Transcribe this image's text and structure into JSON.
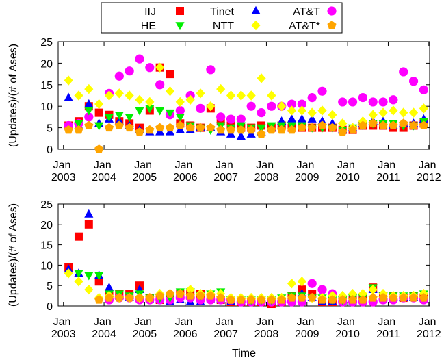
{
  "chart_data": [
    {
      "type": "scatter",
      "ylabel": "(Updates)/(# of Ases)",
      "legend": "top",
      "xlim": [
        2002.87,
        2012.02
      ],
      "ylim": [
        0,
        25
      ],
      "xticks": [
        {
          "value": 2003,
          "label": "Jan 2003"
        },
        {
          "value": 2004,
          "label": "Jan 2004"
        },
        {
          "value": 2005,
          "label": "Jan 2005"
        },
        {
          "value": 2006,
          "label": "Jan 2006"
        },
        {
          "value": 2007,
          "label": "Jan 2007"
        },
        {
          "value": 2008,
          "label": "Jan 2008"
        },
        {
          "value": 2009,
          "label": "Jan 2009"
        },
        {
          "value": 2010,
          "label": "Jan 2010"
        },
        {
          "value": 2011,
          "label": "Jan 2011"
        },
        {
          "value": 2012,
          "label": "Jan 2012"
        }
      ],
      "yticks": [
        0,
        5,
        10,
        15,
        20,
        25
      ],
      "x": [
        2003.125,
        2003.375,
        2003.625,
        2003.875,
        2004.125,
        2004.375,
        2004.625,
        2004.875,
        2005.125,
        2005.375,
        2005.625,
        2005.875,
        2006.125,
        2006.375,
        2006.625,
        2006.875,
        2007.125,
        2007.375,
        2007.625,
        2007.875,
        2008.125,
        2008.375,
        2008.625,
        2008.875,
        2009.125,
        2009.375,
        2009.625,
        2009.875,
        2010.125,
        2010.375,
        2010.625,
        2010.875,
        2011.125,
        2011.375,
        2011.625,
        2011.875
      ],
      "series": [
        {
          "name": "IIJ",
          "color": "#ff0000",
          "marker": "square",
          "values": [
            5.5,
            6.5,
            10,
            8.5,
            8,
            6.5,
            6,
            5,
            9,
            19,
            17.5,
            6,
            5.5,
            5,
            9.5,
            6.5,
            5.5,
            5,
            5,
            5.5,
            5,
            5.5,
            5,
            5,
            5,
            5,
            5,
            4.5,
            4.5,
            5.5,
            5.5,
            5.5,
            5,
            5,
            5.5,
            6
          ]
        },
        {
          "name": "Tinet",
          "color": "#0000ff",
          "marker": "triangle-up",
          "values": [
            12,
            5.5,
            10.5,
            6,
            7,
            6.5,
            5.5,
            4.5,
            4,
            4,
            4,
            4.5,
            4.5,
            5,
            5,
            4,
            3.5,
            3,
            3.5,
            4,
            5,
            6.5,
            7,
            7,
            7,
            6.5,
            6,
            4.5,
            5,
            6,
            6.5,
            6.5,
            5.5,
            6,
            6,
            7
          ]
        },
        {
          "name": "AT&T",
          "color": "#ff00ff",
          "marker": "circle",
          "values": [
            5.5,
            6,
            7.5,
            null,
            13,
            17,
            18.2,
            21,
            19,
            15,
            8,
            9,
            12.5,
            9.5,
            18.5,
            7.5,
            7,
            7,
            10,
            8.5,
            10,
            10,
            10.5,
            10.5,
            12,
            13.5,
            null,
            11,
            11,
            12,
            11,
            11,
            11.5,
            18,
            15.8,
            13.8
          ]
        },
        {
          "name": "HE",
          "color": "#00ee00",
          "marker": "triangle-down",
          "values": [
            null,
            6,
            9,
            5.5,
            7.5,
            8,
            7.5,
            9,
            9.5,
            9,
            8.5,
            7.5,
            5.5,
            5,
            4.5,
            5.5,
            5,
            5.5,
            5,
            5,
            5.5,
            5.5,
            5.5,
            5.5,
            5,
            5,
            5,
            4.5,
            5,
            5.5,
            6,
            6,
            6,
            5.5,
            5.5,
            6.5
          ]
        },
        {
          "name": "NTT",
          "color": "#ffff00",
          "marker": "diamond",
          "values": [
            16,
            12.5,
            14,
            10.5,
            12.5,
            13,
            12.5,
            11.5,
            11,
            19,
            13.5,
            11,
            11.5,
            13,
            10,
            14,
            12.5,
            12.5,
            12.5,
            16.5,
            12.5,
            10,
            9,
            9,
            8.5,
            9,
            8,
            6,
            5,
            6.5,
            8,
            8.5,
            9,
            8.5,
            8.5,
            9.5
          ]
        },
        {
          "name": "AT&T*",
          "color": "#ffa500",
          "marker": "pentagon",
          "values": [
            4.5,
            4.5,
            5.5,
            0,
            5,
            5.5,
            5,
            4,
            4.5,
            5,
            5,
            5.5,
            5,
            5,
            5,
            4.5,
            4.5,
            4.5,
            4.5,
            3.5,
            4.5,
            4.5,
            4.5,
            5,
            5,
            5.5,
            5,
            4,
            4.5,
            5.5,
            6,
            5.5,
            5.5,
            6,
            5.5,
            5.5
          ]
        }
      ]
    },
    {
      "type": "scatter",
      "ylabel": "(Updates)/(# of Ases)",
      "xlabel": "Time",
      "xlim": [
        2002.87,
        2012.02
      ],
      "ylim": [
        0,
        25
      ],
      "xticks": [
        {
          "value": 2003,
          "label": "Jan 2003"
        },
        {
          "value": 2004,
          "label": "Jan 2004"
        },
        {
          "value": 2005,
          "label": "Jan 2005"
        },
        {
          "value": 2006,
          "label": "Jan 2006"
        },
        {
          "value": 2007,
          "label": "Jan 2007"
        },
        {
          "value": 2008,
          "label": "Jan 2008"
        },
        {
          "value": 2009,
          "label": "Jan 2009"
        },
        {
          "value": 2010,
          "label": "Jan 2010"
        },
        {
          "value": 2011,
          "label": "Jan 2011"
        },
        {
          "value": 2012,
          "label": "Jan 2012"
        }
      ],
      "yticks": [
        0,
        5,
        10,
        15,
        20,
        25
      ],
      "x": [
        2003.125,
        2003.375,
        2003.625,
        2003.875,
        2004.125,
        2004.375,
        2004.625,
        2004.875,
        2005.125,
        2005.375,
        2005.625,
        2005.875,
        2006.125,
        2006.375,
        2006.625,
        2006.875,
        2007.125,
        2007.375,
        2007.625,
        2007.875,
        2008.125,
        2008.375,
        2008.625,
        2008.875,
        2009.125,
        2009.375,
        2009.625,
        2009.875,
        2010.125,
        2010.375,
        2010.625,
        2010.875,
        2011.125,
        2011.375,
        2011.625,
        2011.875
      ],
      "series": [
        {
          "color": "#ff0000",
          "marker": "square",
          "values": [
            9.5,
            17,
            20,
            6,
            3,
            3,
            3,
            5,
            2,
            1.5,
            2,
            3,
            3,
            3,
            2,
            1.5,
            1,
            1,
            1,
            1,
            0.5,
            1,
            2.5,
            4,
            3,
            1,
            1,
            1.5,
            1.5,
            2,
            4.5,
            2.5,
            2.5,
            2,
            2.5,
            2
          ]
        },
        {
          "color": "#0000ff",
          "marker": "triangle-up",
          "values": [
            9,
            8,
            22.5,
            7.5,
            4.5,
            2.5,
            2,
            4,
            1.5,
            1.5,
            1,
            1.5,
            1,
            1,
            1.5,
            1.5,
            1,
            1,
            1,
            1,
            1,
            1,
            2,
            3,
            2,
            1,
            1,
            1,
            1,
            1.5,
            4,
            2.5,
            2,
            2,
            2,
            2
          ]
        },
        {
          "color": "#ff00ff",
          "marker": "circle",
          "values": [
            null,
            null,
            null,
            null,
            1.5,
            2,
            2,
            1.5,
            1.5,
            1.5,
            1.5,
            2,
            2,
            1.5,
            1.5,
            1.5,
            1.5,
            1,
            1,
            1,
            1,
            1,
            1,
            1,
            5.5,
            4,
            3,
            1,
            1,
            1,
            1,
            1.5,
            1.5,
            2,
            2,
            1.5
          ]
        },
        {
          "color": "#00ee00",
          "marker": "triangle-down",
          "values": [
            null,
            8,
            7.5,
            7.5,
            3,
            3,
            2.5,
            3,
            2,
            2,
            2,
            3.5,
            3.5,
            2.5,
            3,
            3.5,
            1.5,
            1.5,
            1.5,
            1.5,
            1.5,
            2,
            2.5,
            2.5,
            2,
            2,
            1.5,
            1.5,
            2,
            2,
            4.5,
            2.5,
            2.5,
            2.5,
            2.5,
            3
          ]
        },
        {
          "color": "#ffff00",
          "marker": "diamond",
          "values": [
            8,
            6,
            4,
            2,
            2.5,
            2,
            2,
            2,
            2,
            3,
            3,
            3,
            4,
            3,
            3,
            3,
            2,
            2,
            2,
            2,
            2,
            2,
            5.5,
            6,
            2,
            2,
            2.5,
            2.5,
            3,
            3,
            4,
            3,
            2.5,
            2.5,
            2.5,
            3
          ]
        },
        {
          "color": "#ffa500",
          "marker": "pentagon",
          "values": [
            null,
            null,
            null,
            1.5,
            2,
            2,
            2,
            2,
            2,
            2.5,
            3,
            3,
            2.5,
            2.5,
            2.5,
            2,
            1.5,
            1.5,
            1.5,
            1.5,
            1.5,
            1.5,
            2,
            2,
            2,
            1.5,
            1.5,
            1.5,
            1.5,
            1.5,
            2,
            2,
            2,
            2,
            2,
            2
          ]
        }
      ]
    }
  ]
}
